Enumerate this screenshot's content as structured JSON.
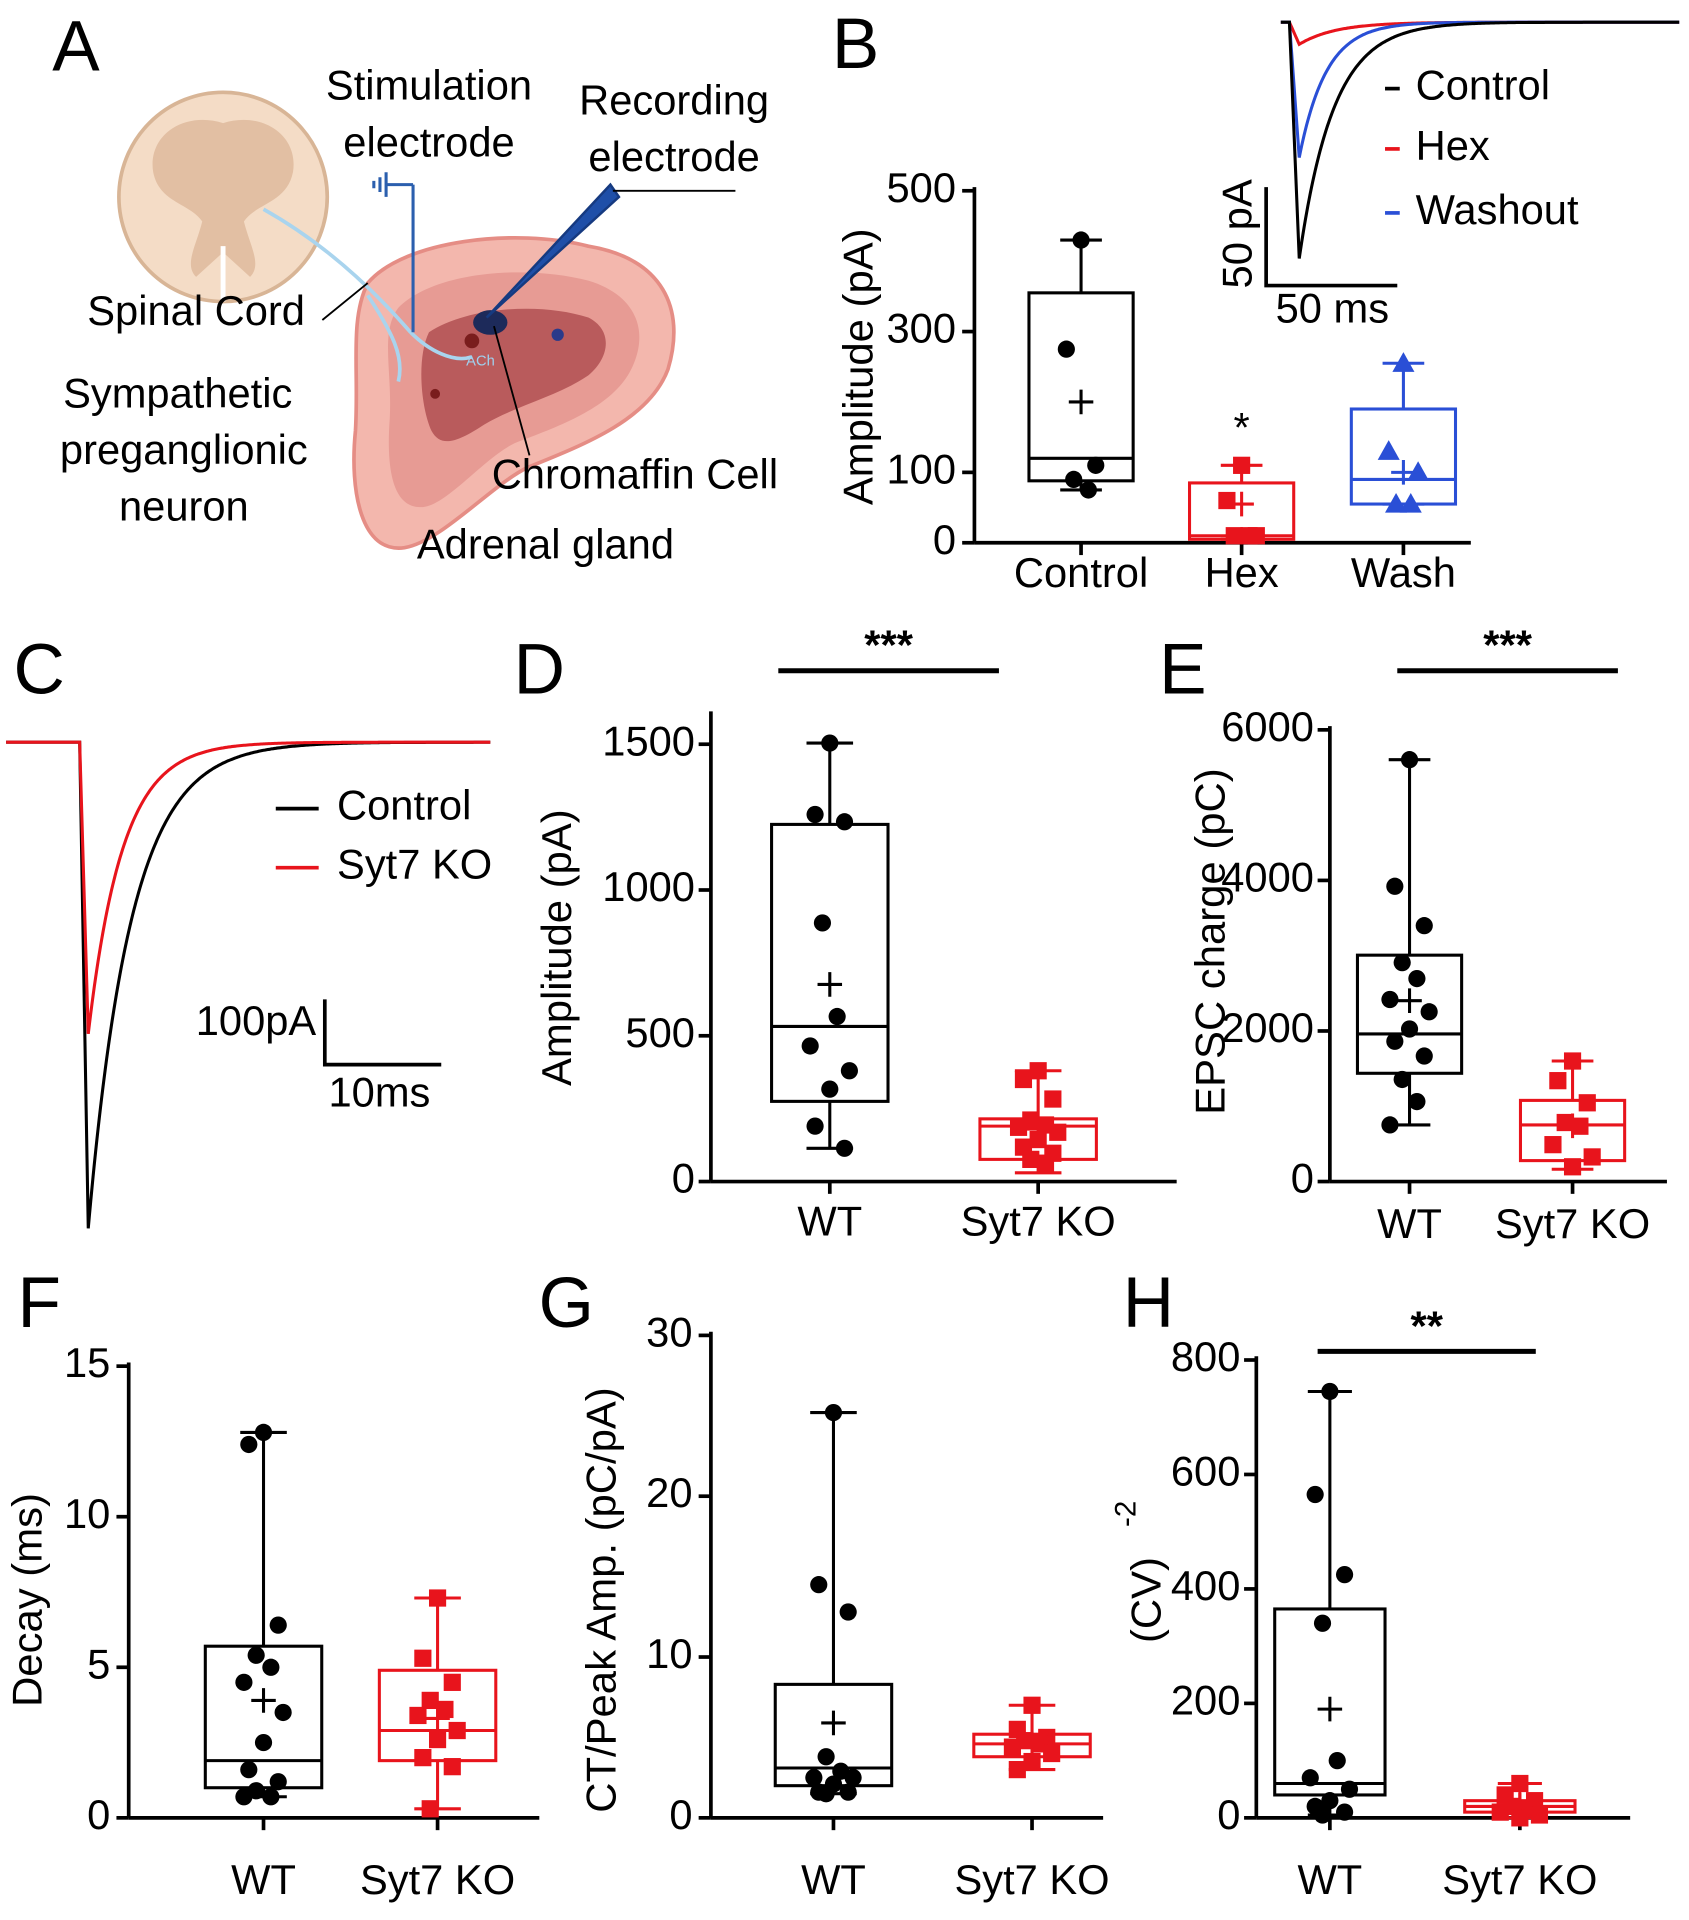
{
  "chart_data": [
    {
      "type": "diagram",
      "panel": "A",
      "labels": {
        "stimulation_electrode": [
          "Stimulation",
          "electrode"
        ],
        "recording_electrode": [
          "Recording",
          "electrode"
        ],
        "spinal_cord": "Spinal Cord",
        "neuron": [
          "Sympathetic",
          "preganglionic",
          "neuron"
        ],
        "chromaffin_cell": "Chromaffin Cell",
        "adrenal_gland": "Adrenal gland",
        "transmitter": "ACh"
      }
    },
    {
      "type": "box",
      "panel": "B",
      "y_label": "Amplitude (pA)",
      "ylim": [
        0,
        500
      ],
      "yticks": [
        0,
        100,
        300,
        500
      ],
      "categories": [
        "Control",
        "Hex",
        "Wash"
      ],
      "groups": [
        {
          "color": "#000000",
          "marker": "circle",
          "points": [
            430,
            275,
            110,
            90,
            75
          ],
          "whisker_low": 75,
          "q1": 88,
          "median": 120,
          "q3": 355,
          "whisker_high": 430,
          "mean": 200
        },
        {
          "color": "#e8141c",
          "marker": "square",
          "points": [
            110,
            60,
            10,
            10,
            10
          ],
          "whisker_low": 5,
          "q1": 5,
          "median": 10,
          "q3": 85,
          "whisker_high": 110,
          "mean": 55,
          "annotation": "*"
        },
        {
          "color": "#2a4fd6",
          "marker": "triangle",
          "points": [
            255,
            130,
            100,
            55,
            55
          ],
          "whisker_low": 55,
          "q1": 55,
          "median": 90,
          "q3": 190,
          "whisker_high": 255,
          "mean": 100
        }
      ],
      "inset": {
        "series": [
          {
            "name": "Control",
            "color": "#000000"
          },
          {
            "name": "Hex",
            "color": "#e8141c"
          },
          {
            "name": "Washout",
            "color": "#2a4fd6"
          }
        ],
        "scale_y": "50 pA",
        "scale_x": "50 ms"
      }
    },
    {
      "type": "trace",
      "panel": "C",
      "series": [
        {
          "name": "Control",
          "color": "#000000"
        },
        {
          "name": "Syt7 KO",
          "color": "#e8141c"
        }
      ],
      "scale_y": "100pA",
      "scale_x": "10ms"
    },
    {
      "type": "box",
      "panel": "D",
      "y_label": "Amplitude (pA)",
      "ylim": [
        0,
        1600
      ],
      "yticks": [
        0,
        500,
        1000,
        1500
      ],
      "categories": [
        "WT",
        "Syt7 KO"
      ],
      "significance": "***",
      "groups": [
        {
          "color": "#000000",
          "marker": "circle",
          "points": [
            1504,
            1259,
            1234,
            887,
            566,
            465,
            380,
            317,
            190,
            114
          ],
          "whisker_low": 114,
          "q1": 275,
          "median": 532,
          "q3": 1225,
          "whisker_high": 1504,
          "mean": 676
        },
        {
          "color": "#e8141c",
          "marker": "square",
          "points": [
            380,
            350,
            283,
            211,
            194,
            186,
            169,
            144,
            118,
            97,
            76,
            63
          ],
          "whisker_low": 30,
          "q1": 76,
          "median": 190,
          "q3": 215,
          "whisker_high": 380,
          "mean": 180
        }
      ]
    },
    {
      "type": "box",
      "panel": "E",
      "y_label": "EPSC charge (pC)",
      "ylim": [
        0,
        6000
      ],
      "yticks": [
        0,
        2000,
        4000,
        6000
      ],
      "categories": [
        "WT",
        "Syt7 KO"
      ],
      "significance": "***",
      "groups": [
        {
          "color": "#000000",
          "marker": "circle",
          "points": [
            5604,
            3922,
            3399,
            2908,
            2696,
            2418,
            2255,
            2026,
            1863,
            1667,
            1356,
            1062,
            752
          ],
          "whisker_low": 752,
          "q1": 1438,
          "median": 1961,
          "q3": 3007,
          "whisker_high": 5604,
          "mean": 2402
        },
        {
          "color": "#e8141c",
          "marker": "square",
          "points": [
            1601,
            1340,
            1046,
            784,
            735,
            490,
            327,
            196
          ],
          "whisker_low": 163,
          "q1": 278,
          "median": 752,
          "q3": 1078,
          "whisker_high": 1601,
          "mean": 740
        }
      ]
    },
    {
      "type": "box",
      "panel": "F",
      "y_label": "Decay (ms)",
      "ylim": [
        0,
        15
      ],
      "yticks": [
        0,
        5,
        10,
        15
      ],
      "categories": [
        "WT",
        "Syt7 KO"
      ],
      "groups": [
        {
          "color": "#000000",
          "marker": "circle",
          "points": [
            12.8,
            12.4,
            6.4,
            5.4,
            5.0,
            4.5,
            3.5,
            2.5,
            1.6,
            1.2,
            0.9,
            0.7,
            0.7
          ],
          "whisker_low": 0.7,
          "q1": 1.0,
          "median": 1.9,
          "q3": 5.7,
          "whisker_high": 12.8,
          "mean": 3.9
        },
        {
          "color": "#e8141c",
          "marker": "square",
          "points": [
            7.3,
            5.3,
            4.5,
            3.9,
            3.6,
            3.4,
            2.9,
            2.6,
            2.0,
            1.7,
            0.3
          ],
          "whisker_low": 0.3,
          "q1": 1.9,
          "median": 2.9,
          "q3": 4.9,
          "whisker_high": 7.3,
          "mean": 3.3
        }
      ]
    },
    {
      "type": "box",
      "panel": "G",
      "y_label": "CT/Peak Amp. (pC/pA)",
      "ylim": [
        0,
        30
      ],
      "yticks": [
        0,
        10,
        20,
        30
      ],
      "categories": [
        "WT",
        "Syt7 KO"
      ],
      "groups": [
        {
          "color": "#000000",
          "marker": "circle",
          "points": [
            25.2,
            14.5,
            12.8,
            3.8,
            2.9,
            2.5,
            2.5,
            2.1,
            1.6,
            1.6,
            1.5
          ],
          "whisker_low": 1.5,
          "q1": 2.0,
          "median": 3.1,
          "q3": 8.3,
          "whisker_high": 25.2,
          "mean": 5.9
        },
        {
          "color": "#e8141c",
          "marker": "square",
          "points": [
            7.0,
            5.5,
            5.0,
            4.8,
            4.6,
            4.4,
            4.0,
            3.5,
            3.0
          ],
          "whisker_low": 3.0,
          "q1": 3.8,
          "median": 4.6,
          "q3": 5.2,
          "whisker_high": 7.0,
          "mean": 4.6
        }
      ]
    },
    {
      "type": "box",
      "panel": "H",
      "y_label": "(CV)",
      "y_label_sup": "-2",
      "ylim": [
        0,
        800
      ],
      "yticks": [
        0,
        200,
        400,
        600,
        800
      ],
      "categories": [
        "WT",
        "Syt7 KO"
      ],
      "significance": "**",
      "groups": [
        {
          "color": "#000000",
          "marker": "circle",
          "points": [
            745,
            565,
            425,
            340,
            100,
            70,
            50,
            30,
            20,
            10,
            5
          ],
          "whisker_low": 5,
          "q1": 40,
          "median": 60,
          "q3": 365,
          "whisker_high": 745,
          "mean": 190
        },
        {
          "color": "#e8141c",
          "marker": "square",
          "points": [
            60,
            40,
            30,
            20,
            15,
            10,
            5,
            0
          ],
          "whisker_low": 0,
          "q1": 10,
          "median": 20,
          "q3": 30,
          "whisker_high": 60,
          "mean": 22
        }
      ]
    }
  ]
}
